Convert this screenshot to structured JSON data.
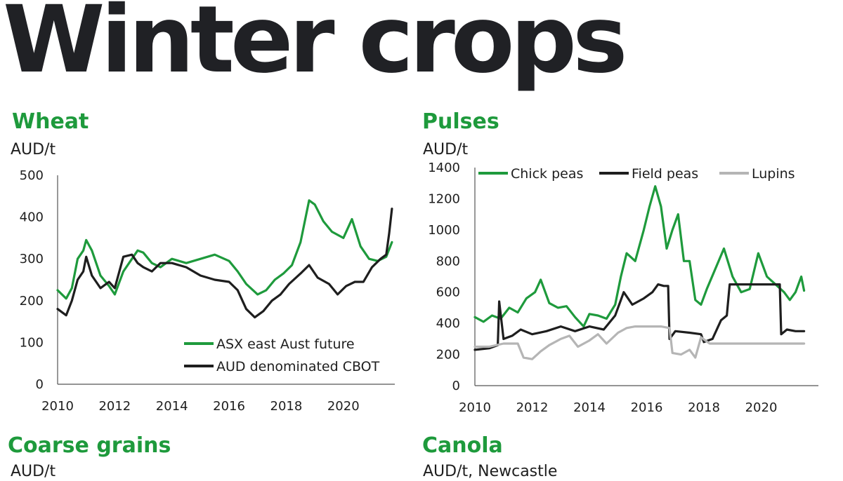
{
  "page_title": "Winter crops",
  "panels": {
    "wheat": {
      "title": "Wheat",
      "unit": "AUD/t"
    },
    "pulses": {
      "title": "Pulses",
      "unit": "AUD/t"
    },
    "coarse": {
      "title": "Coarse grains",
      "unit": "AUD/t"
    },
    "canola": {
      "title": "Canola",
      "unit": "AUD/t, Newcastle"
    }
  },
  "colors": {
    "green": "#1e9a3c",
    "black": "#1e1e1e",
    "grey": "#b5b5b5",
    "axis": "#555555"
  },
  "chart_data": [
    {
      "id": "wheat",
      "type": "line",
      "title": "Wheat",
      "ylabel": "AUD/t",
      "xlim": [
        2010,
        2021.8
      ],
      "ylim": [
        0,
        500
      ],
      "yticks": [
        0,
        100,
        200,
        300,
        400,
        500
      ],
      "xticks": [
        2010,
        2012,
        2014,
        2016,
        2018,
        2020
      ],
      "legend": "bottom-right",
      "grid": false,
      "series": [
        {
          "name": "ASX east Aust future",
          "color": "green",
          "x": [
            2010,
            2010.3,
            2010.5,
            2010.7,
            2010.9,
            2011.0,
            2011.2,
            2011.5,
            2011.8,
            2012.0,
            2012.3,
            2012.6,
            2012.8,
            2013.0,
            2013.3,
            2013.6,
            2014.0,
            2014.5,
            2015.0,
            2015.5,
            2016.0,
            2016.3,
            2016.6,
            2017.0,
            2017.3,
            2017.6,
            2017.9,
            2018.2,
            2018.5,
            2018.8,
            2019.0,
            2019.3,
            2019.6,
            2020.0,
            2020.3,
            2020.6,
            2020.9,
            2021.2,
            2021.5,
            2021.7
          ],
          "y": [
            225,
            205,
            230,
            300,
            320,
            345,
            320,
            260,
            235,
            215,
            270,
            300,
            320,
            315,
            290,
            280,
            300,
            290,
            300,
            310,
            295,
            270,
            240,
            215,
            225,
            250,
            265,
            285,
            340,
            440,
            430,
            390,
            365,
            350,
            395,
            330,
            300,
            295,
            305,
            340
          ]
        },
        {
          "name": "AUD denominated CBOT",
          "color": "black",
          "x": [
            2010,
            2010.3,
            2010.5,
            2010.7,
            2010.9,
            2011.0,
            2011.2,
            2011.5,
            2011.8,
            2012.0,
            2012.3,
            2012.6,
            2012.8,
            2013.0,
            2013.3,
            2013.6,
            2014.0,
            2014.5,
            2015.0,
            2015.5,
            2016.0,
            2016.3,
            2016.6,
            2016.9,
            2017.2,
            2017.5,
            2017.8,
            2018.1,
            2018.5,
            2018.8,
            2019.1,
            2019.5,
            2019.8,
            2020.1,
            2020.4,
            2020.7,
            2021.0,
            2021.3,
            2021.5,
            2021.6,
            2021.7
          ],
          "y": [
            180,
            165,
            200,
            250,
            270,
            305,
            260,
            230,
            245,
            230,
            305,
            310,
            290,
            280,
            270,
            290,
            290,
            280,
            260,
            250,
            245,
            225,
            180,
            160,
            175,
            200,
            215,
            240,
            265,
            285,
            255,
            240,
            215,
            235,
            245,
            245,
            280,
            300,
            310,
            360,
            420
          ]
        }
      ]
    },
    {
      "id": "pulses",
      "type": "line",
      "title": "Pulses",
      "ylabel": "AUD/t",
      "xlim": [
        2010,
        2022
      ],
      "ylim": [
        0,
        1400
      ],
      "yticks": [
        0,
        200,
        400,
        600,
        800,
        1000,
        1200,
        1400
      ],
      "xticks": [
        2010,
        2012,
        2014,
        2016,
        2018,
        2020
      ],
      "legend": "top",
      "grid": false,
      "series": [
        {
          "name": "Chick peas",
          "color": "green",
          "x": [
            2010,
            2010.3,
            2010.6,
            2010.9,
            2011.2,
            2011.5,
            2011.8,
            2012.1,
            2012.3,
            2012.6,
            2012.9,
            2013.2,
            2013.5,
            2013.8,
            2014.0,
            2014.3,
            2014.6,
            2014.9,
            2015.1,
            2015.3,
            2015.6,
            2015.9,
            2016.1,
            2016.3,
            2016.5,
            2016.7,
            2016.9,
            2017.1,
            2017.3,
            2017.5,
            2017.7,
            2017.9,
            2018.1,
            2018.4,
            2018.7,
            2019.0,
            2019.3,
            2019.6,
            2019.9,
            2020.2,
            2020.5,
            2020.8,
            2021.0,
            2021.2,
            2021.4,
            2021.5
          ],
          "y": [
            440,
            410,
            450,
            430,
            500,
            470,
            560,
            600,
            680,
            530,
            500,
            510,
            440,
            380,
            460,
            450,
            430,
            520,
            700,
            850,
            800,
            1000,
            1150,
            1280,
            1150,
            880,
            1000,
            1100,
            800,
            800,
            550,
            520,
            620,
            750,
            880,
            700,
            600,
            620,
            850,
            700,
            650,
            600,
            550,
            600,
            700,
            610
          ]
        },
        {
          "name": "Field peas",
          "color": "black",
          "x": [
            2010,
            2010.5,
            2010.8,
            2010.85,
            2011.0,
            2011.3,
            2011.6,
            2012.0,
            2012.5,
            2013.0,
            2013.5,
            2014.0,
            2014.5,
            2014.9,
            2015.2,
            2015.5,
            2015.9,
            2016.2,
            2016.4,
            2016.6,
            2016.75,
            2016.8,
            2017.0,
            2017.5,
            2017.9,
            2018.0,
            2018.3,
            2018.6,
            2018.8,
            2018.9,
            2019.2,
            2019.6,
            2020.0,
            2020.4,
            2020.65,
            2020.7,
            2020.9,
            2021.2,
            2021.5
          ],
          "y": [
            230,
            240,
            260,
            540,
            300,
            320,
            360,
            330,
            350,
            380,
            350,
            380,
            360,
            450,
            600,
            520,
            560,
            600,
            650,
            640,
            640,
            300,
            350,
            340,
            330,
            280,
            300,
            420,
            450,
            650,
            650,
            650,
            650,
            650,
            650,
            330,
            360,
            350,
            350
          ]
        },
        {
          "name": "Lupins",
          "color": "grey",
          "x": [
            2010,
            2010.5,
            2011.0,
            2011.5,
            2011.7,
            2012.0,
            2012.3,
            2012.6,
            2013.0,
            2013.3,
            2013.6,
            2014.0,
            2014.3,
            2014.6,
            2015.0,
            2015.3,
            2015.6,
            2016.0,
            2016.5,
            2016.8,
            2016.9,
            2017.2,
            2017.5,
            2017.7,
            2017.9,
            2018.2,
            2018.6,
            2019.0,
            2019.5,
            2020.0,
            2020.5,
            2021.0,
            2021.5
          ],
          "y": [
            250,
            250,
            270,
            270,
            180,
            170,
            220,
            260,
            300,
            320,
            250,
            290,
            330,
            270,
            340,
            370,
            380,
            380,
            380,
            370,
            210,
            200,
            230,
            180,
            310,
            270,
            270,
            270,
            270,
            270,
            270,
            270,
            270
          ]
        }
      ]
    }
  ]
}
